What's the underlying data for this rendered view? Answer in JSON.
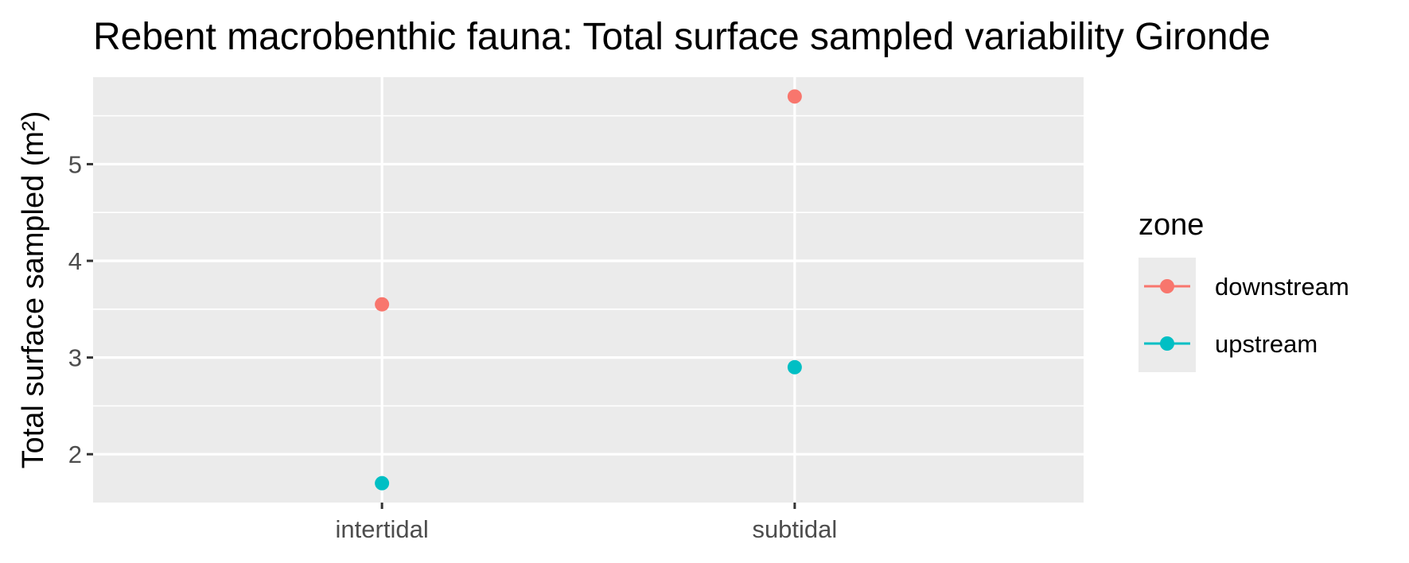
{
  "chart_data": {
    "type": "scatter",
    "title": "Rebent macrobenthic fauna: Total surface sampled variability Gironde",
    "xlabel": "",
    "ylabel": "Total surface sampled (m²)",
    "categories": [
      "intertidal",
      "subtidal"
    ],
    "ylim": [
      1.5,
      5.9
    ],
    "yticks": [
      2,
      3,
      4,
      5
    ],
    "grid": true,
    "legend": {
      "title": "zone",
      "position": "right"
    },
    "series": [
      {
        "name": "downstream",
        "color": "#F8766D",
        "values": [
          3.55,
          5.7
        ]
      },
      {
        "name": "upstream",
        "color": "#00BFC4",
        "values": [
          1.7,
          2.9
        ]
      }
    ]
  }
}
